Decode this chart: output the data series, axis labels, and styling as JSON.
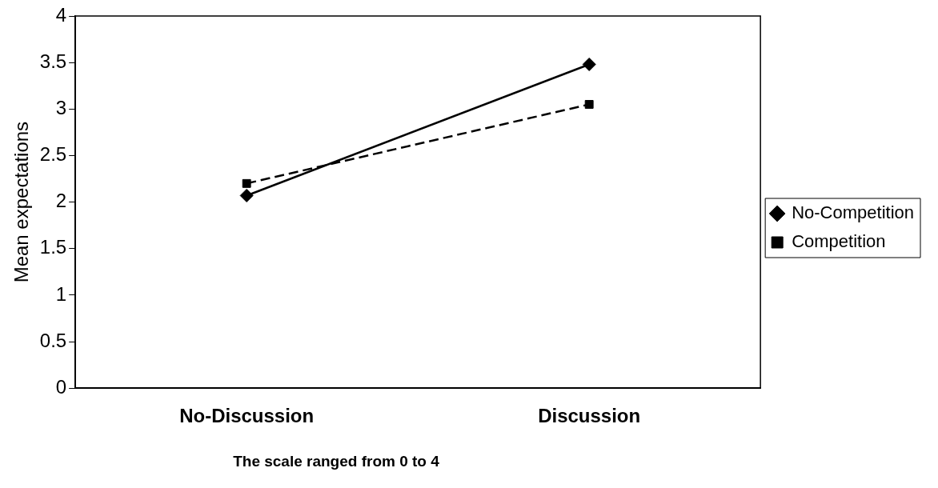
{
  "chart_data": {
    "type": "line",
    "ylabel": "Mean expectations",
    "categories": [
      "No-Discussion",
      "Discussion"
    ],
    "series": [
      {
        "name": "No-Competition",
        "color": "#000000",
        "values": [
          2.07,
          3.48
        ],
        "marker": "diamond",
        "line_style": "solid"
      },
      {
        "name": "Competition",
        "color": "#000000",
        "values": [
          2.2,
          3.05
        ],
        "marker": "square",
        "line_style": "dashed"
      }
    ],
    "ylim": [
      0,
      4
    ],
    "yticks": [
      0,
      0.5,
      1,
      1.5,
      2,
      2.5,
      3,
      3.5,
      4
    ],
    "grid": false,
    "legend": "right",
    "annotations": [
      "The scale ranged from 0 to 4"
    ]
  }
}
